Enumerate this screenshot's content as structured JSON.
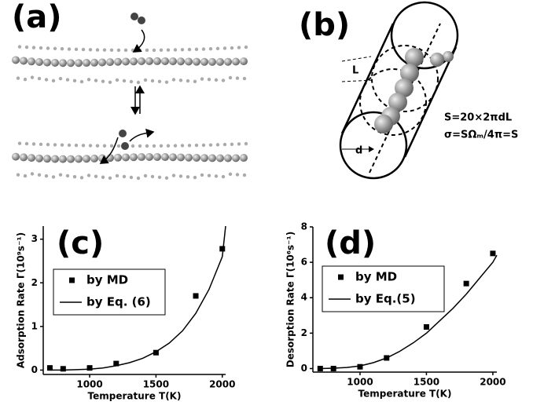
{
  "figure": {
    "panel_a": {
      "label": "(a)"
    },
    "panel_b": {
      "label": "(b)",
      "length_label": "L",
      "diameter_label": "d",
      "area_formula": "S=20×2πdL",
      "cross_section_formula": "σ=SΩₘ/4π=S"
    }
  },
  "chart_data": [
    {
      "type": "scatter",
      "panel_label": "(c)",
      "x_label": "Temperature T(K)",
      "y_label": "Adsorption Rate Γ(10⁹s⁻¹)",
      "xlim": [
        650,
        2025
      ],
      "ylim": [
        -0.1,
        3.3
      ],
      "xticks": [
        1000,
        1500,
        2000
      ],
      "yticks": [
        0,
        1,
        2,
        3
      ],
      "series": [
        {
          "name": "by MD",
          "mode": "markers",
          "color": "#000000",
          "x": [
            700,
            800,
            1000,
            1200,
            1500,
            1800,
            2000
          ],
          "values": [
            0.05,
            0.03,
            0.05,
            0.15,
            0.4,
            1.7,
            2.78
          ]
        },
        {
          "name": "by Eq. (6)",
          "mode": "line",
          "color": "#000000",
          "x": [
            700,
            800,
            900,
            1000,
            1100,
            1200,
            1300,
            1400,
            1500,
            1600,
            1700,
            1800,
            1900,
            2000,
            2025
          ],
          "values": [
            0,
            0,
            0.01,
            0.02,
            0.05,
            0.1,
            0.17,
            0.27,
            0.42,
            0.62,
            0.9,
            1.3,
            1.85,
            2.6,
            3.3
          ]
        }
      ]
    },
    {
      "type": "scatter",
      "panel_label": "(d)",
      "x_label": "Temperature T(K)",
      "y_label": "Desorption Rate Γ(10⁶s⁻¹)",
      "xlim": [
        645,
        2030
      ],
      "ylim": [
        -0.2,
        8
      ],
      "xticks": [
        1000,
        1500,
        2000
      ],
      "yticks": [
        0,
        2,
        4,
        6,
        8
      ],
      "series": [
        {
          "name": "by MD",
          "mode": "markers",
          "color": "#000000",
          "x": [
            700,
            800,
            1000,
            1200,
            1500,
            1800,
            2000
          ],
          "values": [
            0,
            0,
            0.1,
            0.6,
            2.35,
            4.8,
            6.5
          ]
        },
        {
          "name": "by Eq.(5)",
          "mode": "line",
          "color": "#000000",
          "x": [
            700,
            800,
            900,
            1000,
            1100,
            1200,
            1300,
            1400,
            1500,
            1600,
            1700,
            1800,
            1900,
            2000,
            2030
          ],
          "values": [
            0,
            0.02,
            0.06,
            0.15,
            0.33,
            0.6,
            0.98,
            1.45,
            2.0,
            2.7,
            3.4,
            4.2,
            5.1,
            6.0,
            6.4
          ]
        }
      ]
    }
  ]
}
